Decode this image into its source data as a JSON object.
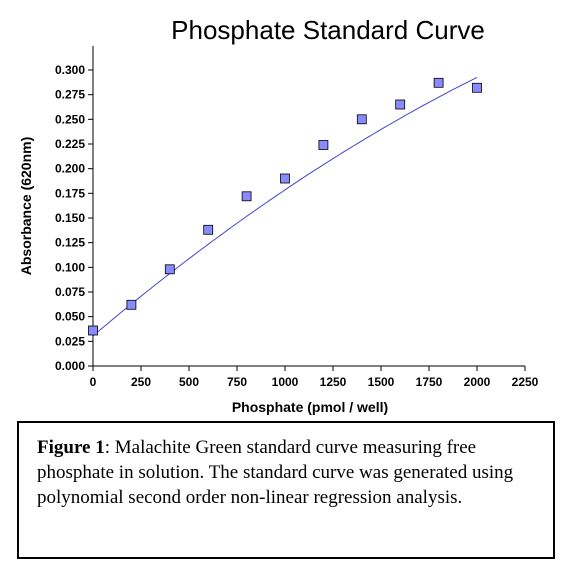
{
  "chart_data": {
    "type": "scatter",
    "title": "Phosphate Standard Curve",
    "xlabel": "Phosphate (pmol / well)",
    "ylabel": "Absorbance (620nm)",
    "xlim": [
      0,
      2250
    ],
    "ylim": [
      0,
      0.3
    ],
    "x_ticks": [
      "0",
      "250",
      "500",
      "750",
      "1000",
      "1250",
      "1500",
      "1750",
      "2000",
      "2250"
    ],
    "y_ticks": [
      "0.000",
      "0.025",
      "0.050",
      "0.075",
      "0.100",
      "0.125",
      "0.150",
      "0.175",
      "0.200",
      "0.225",
      "0.250",
      "0.275",
      "0.300"
    ],
    "points": [
      {
        "x": 0,
        "y": 0.036
      },
      {
        "x": 200,
        "y": 0.062
      },
      {
        "x": 400,
        "y": 0.098
      },
      {
        "x": 600,
        "y": 0.138
      },
      {
        "x": 800,
        "y": 0.172
      },
      {
        "x": 1000,
        "y": 0.19
      },
      {
        "x": 1200,
        "y": 0.224
      },
      {
        "x": 1400,
        "y": 0.25
      },
      {
        "x": 1600,
        "y": 0.265
      },
      {
        "x": 1800,
        "y": 0.287
      },
      {
        "x": 2000,
        "y": 0.282
      }
    ],
    "fit": {
      "type": "polynomial-2",
      "coefficients": [
        0.0305,
        0.000165,
        -1.7e-08
      ]
    },
    "marker_color": "#8a8aff",
    "line_color": "#4444cc"
  },
  "caption": {
    "label": "Figure 1",
    "text": ": Malachite Green standard curve measuring free phosphate in solution.  The standard curve was generated using polynomial second order non-linear regression analysis."
  }
}
